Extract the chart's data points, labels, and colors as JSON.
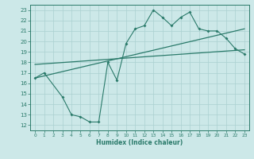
{
  "title": "",
  "xlabel": "Humidex (Indice chaleur)",
  "bg_color": "#cce8e8",
  "grid_color": "#aad0d0",
  "line_color": "#2a7a6a",
  "xlim": [
    -0.5,
    23.5
  ],
  "ylim": [
    11.5,
    23.5
  ],
  "xticks": [
    0,
    1,
    2,
    3,
    4,
    5,
    6,
    7,
    8,
    9,
    10,
    11,
    12,
    13,
    14,
    15,
    16,
    17,
    18,
    19,
    20,
    21,
    22,
    23
  ],
  "yticks": [
    12,
    13,
    14,
    15,
    16,
    17,
    18,
    19,
    20,
    21,
    22,
    23
  ],
  "data_line": {
    "x": [
      0,
      1,
      3,
      4,
      5,
      6,
      7,
      8,
      9,
      10,
      11,
      12,
      13,
      14,
      15,
      16,
      17,
      18,
      19,
      20,
      21,
      22,
      23
    ],
    "y": [
      16.5,
      17,
      14.7,
      13,
      12.8,
      12.3,
      12.3,
      18.0,
      16.3,
      19.8,
      21.2,
      21.5,
      23.0,
      22.3,
      21.5,
      22.3,
      22.8,
      21.2,
      21.0,
      21.0,
      20.3,
      19.3,
      18.8
    ]
  },
  "line1": {
    "x": [
      0,
      23
    ],
    "y": [
      16.5,
      21.2
    ]
  },
  "line2": {
    "x": [
      0,
      23
    ],
    "y": [
      17.8,
      19.2
    ]
  }
}
